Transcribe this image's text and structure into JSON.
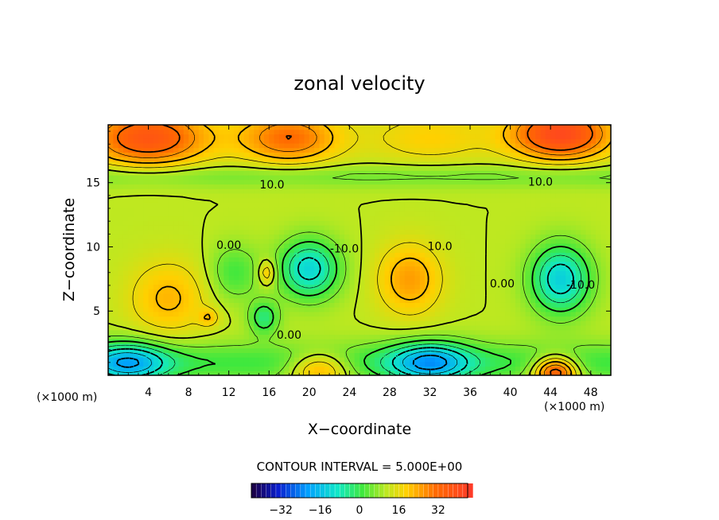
{
  "chart_data": {
    "type": "heatmap",
    "title": "zonal velocity",
    "xlabel": "X−coordinate",
    "ylabel": "Z−coordinate",
    "x_unit": "(×1000 m)",
    "z_unit": "(×1000 m)",
    "xlim": [
      0,
      50
    ],
    "ylim": [
      0,
      19.5
    ],
    "x_ticks": [
      4,
      8,
      12,
      16,
      20,
      24,
      28,
      32,
      36,
      40,
      44,
      48
    ],
    "y_ticks": [
      5,
      10,
      15
    ],
    "contour_interval_text": "CONTOUR INTERVAL = 5.000E+00",
    "contour_interval": 5,
    "contour_labels": [
      {
        "text": "10.0",
        "x": 16.3,
        "z": 14.8
      },
      {
        "text": "10.0",
        "x": 43.0,
        "z": 15.0
      },
      {
        "text": "10.0",
        "x": 33.0,
        "z": 10.0
      },
      {
        "text": "0.00",
        "x": 12.0,
        "z": 10.1
      },
      {
        "text": "-10.0",
        "x": 23.5,
        "z": 9.8
      },
      {
        "text": "0.00",
        "x": 39.2,
        "z": 7.1
      },
      {
        "text": "-10.0",
        "x": 47.0,
        "z": 7.0
      },
      {
        "text": "0.00",
        "x": 18.0,
        "z": 3.1
      }
    ],
    "colorbar": {
      "range": [
        -44,
        44
      ],
      "ticks": [
        -32,
        -16,
        0,
        16,
        32
      ],
      "tick_labels": [
        "−32",
        "−16",
        "0",
        "16",
        "32"
      ]
    },
    "field_features": [
      {
        "kind": "positive",
        "x": 4,
        "z": 18.5,
        "amp": 26,
        "sx": 6,
        "sz": 2.2
      },
      {
        "kind": "positive",
        "x": 18,
        "z": 18.5,
        "amp": 20,
        "sx": 5,
        "sz": 2
      },
      {
        "kind": "positive",
        "x": 45,
        "z": 18.8,
        "amp": 30,
        "sx": 5,
        "sz": 2
      },
      {
        "kind": "positive",
        "x": 32,
        "z": 18.5,
        "amp": 8,
        "sx": 6,
        "sz": 2
      },
      {
        "kind": "negative",
        "x": 20,
        "z": 8.3,
        "amp": -23,
        "sx": 3,
        "sz": 2.3
      },
      {
        "kind": "negative",
        "x": 45,
        "z": 7.5,
        "amp": -24,
        "sx": 3,
        "sz": 2.7
      },
      {
        "kind": "negative",
        "x": 2,
        "z": 1.0,
        "amp": -22,
        "sx": 4,
        "sz": 1.6
      },
      {
        "kind": "negative",
        "x": 32,
        "z": 1.0,
        "amp": -24,
        "sx": 4,
        "sz": 1.6
      },
      {
        "kind": "negative",
        "x": 15.5,
        "z": 4.5,
        "amp": -14,
        "sx": 1.5,
        "sz": 1.3
      },
      {
        "kind": "negative",
        "x": 12.5,
        "z": 8.0,
        "amp": -10,
        "sx": 2.5,
        "sz": 2.2
      },
      {
        "kind": "positive",
        "x": 30,
        "z": 7.5,
        "amp": 14,
        "sx": 3.2,
        "sz": 2.8
      },
      {
        "kind": "positive",
        "x": 6,
        "z": 6.0,
        "amp": 11,
        "sx": 4,
        "sz": 3
      },
      {
        "kind": "positive",
        "x": 44.5,
        "z": 0.3,
        "amp": 30,
        "sx": 2.2,
        "sz": 1.2
      },
      {
        "kind": "positive",
        "x": 21,
        "z": 0.5,
        "amp": 18,
        "sx": 3,
        "sz": 1.3
      },
      {
        "kind": "positive",
        "x": 15.8,
        "z": 8.0,
        "amp": 12,
        "sx": 0.9,
        "sz": 1.0
      },
      {
        "kind": "positive",
        "x": 10,
        "z": 4.5,
        "amp": 8,
        "sx": 1.0,
        "sz": 0.7
      }
    ],
    "field_background": 10,
    "upper_band": {
      "z_center": 15.5,
      "value": 8
    }
  }
}
